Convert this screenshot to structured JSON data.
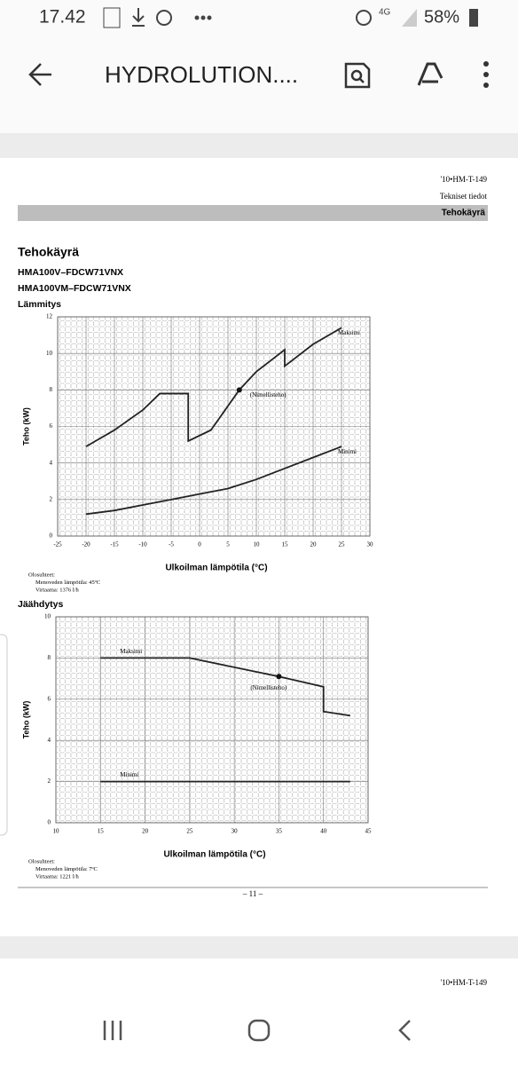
{
  "status_bar": {
    "time": "17.42",
    "network": "4G",
    "battery": "58%"
  },
  "toolbar": {
    "title": "HYDROLUTION...."
  },
  "document": {
    "doc_code": "'10•HM-T-149",
    "section": "Tekniset tiedot",
    "band_title": "Tehokäyrä",
    "heading": "Tehokäyrä",
    "models": [
      "HMA100V–FDCW71VNX",
      "HMA100VM–FDCW71VNX"
    ],
    "page_number": "– 11 –",
    "next_page_code": "'10•HM-T-149"
  },
  "chart_data": [
    {
      "type": "line",
      "title": "Lämmitys",
      "x_label": "Ulkoilman lämpötila (°C)",
      "y_label": "Teho (kW)",
      "xlim": [
        -25,
        30
      ],
      "ylim": [
        0,
        12
      ],
      "xticks": [
        -25,
        -20,
        -15,
        -10,
        -5,
        0,
        5,
        10,
        15,
        20,
        25,
        30
      ],
      "yticks": [
        0,
        2,
        4,
        6,
        8,
        10,
        12
      ],
      "grid": true,
      "series": [
        {
          "name": "Maksimi",
          "color": "#222222",
          "x": [
            -20,
            -15,
            -10,
            -7,
            -2,
            -2,
            2,
            7,
            10,
            15,
            15,
            20,
            25
          ],
          "values": [
            4.9,
            5.8,
            6.9,
            7.8,
            7.8,
            5.2,
            5.8,
            8,
            9,
            10.2,
            9.3,
            10.5,
            11.4
          ]
        },
        {
          "name": "Minimi",
          "color": "#222222",
          "x": [
            -20,
            -15,
            -10,
            -5,
            0,
            5,
            10,
            15,
            20,
            25
          ],
          "values": [
            1.2,
            1.4,
            1.7,
            2.0,
            2.3,
            2.6,
            3.1,
            3.7,
            4.3,
            4.9
          ]
        }
      ],
      "nominal": {
        "label": "(Nimellisteho)",
        "x": 7,
        "y": 8
      },
      "notes": [
        "Olosuhteet:",
        "Menoveden lämpötila: 45ºC",
        "Virtaama: 1376 l/h"
      ]
    },
    {
      "type": "line",
      "title": "Jäähdytys",
      "x_label": "Ulkoilman lämpötila (°C)",
      "y_label": "Teho (kW)",
      "xlim": [
        10,
        45
      ],
      "ylim": [
        0,
        10
      ],
      "xticks": [
        10,
        15,
        20,
        25,
        30,
        35,
        40,
        45
      ],
      "yticks": [
        0,
        2,
        4,
        6,
        8,
        10
      ],
      "grid": true,
      "series": [
        {
          "name": "Maksimi",
          "color": "#222222",
          "x": [
            15,
            25,
            35,
            40,
            40,
            43
          ],
          "values": [
            8,
            8,
            7.1,
            6.6,
            5.4,
            5.2
          ]
        },
        {
          "name": "Minimi",
          "color": "#222222",
          "x": [
            15,
            43
          ],
          "values": [
            2,
            2
          ]
        }
      ],
      "nominal": {
        "label": "(Nimellisteho)",
        "x": 35,
        "y": 7.1
      },
      "notes": [
        "Olosuhteet:",
        "Menoveden lämpötila: 7ºC",
        "Virtaama: 1221 l/h"
      ]
    }
  ]
}
